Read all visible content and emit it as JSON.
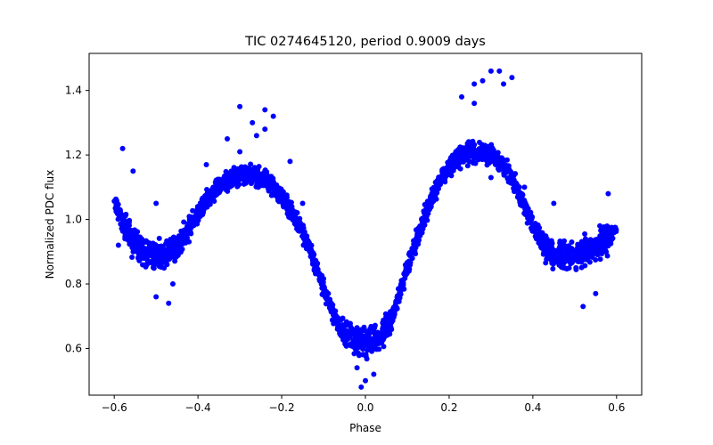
{
  "chart_data": {
    "type": "scatter",
    "title": "TIC 0274645120, period 0.9009 days",
    "xlabel": "Phase",
    "ylabel": "Normalized PDC flux",
    "xlim": [
      -0.66,
      0.66
    ],
    "ylim": [
      0.455,
      1.515
    ],
    "xticks": [
      -0.6,
      -0.4,
      -0.2,
      0.0,
      0.2,
      0.4,
      0.6
    ],
    "xtick_labels": [
      "−0.6",
      "−0.4",
      "−0.2",
      "0.0",
      "0.2",
      "0.4",
      "0.6"
    ],
    "yticks": [
      0.6,
      0.8,
      1.0,
      1.2,
      1.4
    ],
    "ytick_labels": [
      "0.6",
      "0.8",
      "1.0",
      "1.2",
      "1.4"
    ],
    "grid": false,
    "legend": "none",
    "marker_color": "#0000ff",
    "series": [
      {
        "x": [
          -0.6,
          -0.58,
          -0.56,
          -0.54,
          -0.52,
          -0.5,
          -0.48,
          -0.46,
          -0.44,
          -0.42,
          -0.4,
          -0.38,
          -0.36,
          -0.34,
          -0.32,
          -0.3,
          -0.28,
          -0.26,
          -0.24,
          -0.22,
          -0.2,
          -0.18,
          -0.16,
          -0.14,
          -0.12,
          -0.1,
          -0.08,
          -0.06,
          -0.04,
          -0.02,
          0.0,
          0.02,
          0.04,
          0.06,
          0.08,
          0.1,
          0.12,
          0.14,
          0.16,
          0.18,
          0.2,
          0.22,
          0.24,
          0.26,
          0.28,
          0.3,
          0.32,
          0.34,
          0.36,
          0.38,
          0.4,
          0.42,
          0.44,
          0.46,
          0.48,
          0.5,
          0.52,
          0.54,
          0.56,
          0.58,
          0.6
        ],
        "y": [
          1.06,
          0.99,
          0.94,
          0.91,
          0.895,
          0.89,
          0.895,
          0.905,
          0.93,
          0.975,
          1.02,
          1.06,
          1.09,
          1.11,
          1.125,
          1.135,
          1.14,
          1.135,
          1.125,
          1.1,
          1.07,
          1.03,
          0.985,
          0.93,
          0.86,
          0.79,
          0.72,
          0.66,
          0.635,
          0.625,
          0.62,
          0.625,
          0.64,
          0.68,
          0.76,
          0.85,
          0.93,
          1.0,
          1.07,
          1.12,
          1.165,
          1.19,
          1.205,
          1.21,
          1.21,
          1.2,
          1.18,
          1.15,
          1.1,
          1.04,
          0.98,
          0.93,
          0.9,
          0.89,
          0.885,
          0.89,
          0.895,
          0.905,
          0.92,
          0.94,
          0.97
        ]
      }
    ],
    "outliers": {
      "x": [
        -0.58,
        -0.555,
        -0.5,
        -0.47,
        -0.42,
        -0.38,
        -0.33,
        -0.3,
        -0.27,
        -0.24,
        -0.22,
        -0.18,
        -0.15,
        -0.3,
        -0.26,
        -0.24,
        0.23,
        0.26,
        0.28,
        0.3,
        0.32,
        0.33,
        0.35,
        0.26,
        0.3,
        0.38,
        0.45,
        0.52,
        0.55,
        -0.5,
        -0.46,
        -0.01,
        0.0,
        0.02,
        -0.02,
        0.56,
        0.58,
        -0.59
      ],
      "y": [
        1.22,
        1.15,
        1.05,
        0.74,
        1.0,
        1.17,
        1.25,
        1.35,
        1.3,
        1.34,
        1.32,
        1.18,
        1.05,
        1.21,
        1.26,
        1.28,
        1.38,
        1.42,
        1.43,
        1.46,
        1.46,
        1.42,
        1.44,
        1.36,
        1.13,
        1.1,
        1.05,
        0.73,
        0.77,
        0.76,
        0.8,
        0.48,
        0.5,
        0.52,
        0.54,
        0.98,
        1.08,
        0.92
      ]
    }
  }
}
